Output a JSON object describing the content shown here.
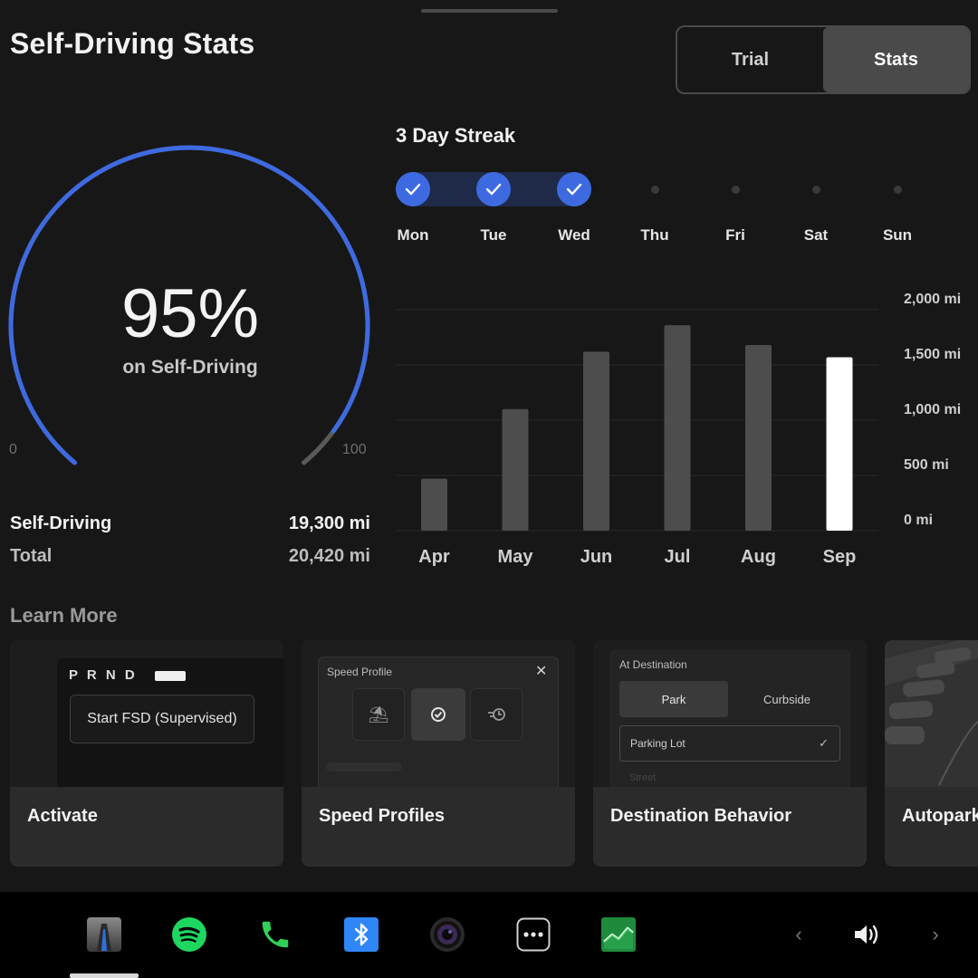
{
  "page": {
    "title": "Self-Driving Stats"
  },
  "tabs": [
    {
      "label": "Trial",
      "active": false
    },
    {
      "label": "Stats",
      "active": true
    }
  ],
  "gauge": {
    "percent_label": "95%",
    "percent": 95,
    "subtitle": "on Self-Driving",
    "min_label": "0",
    "max_label": "100",
    "accent": "#3e6ae1"
  },
  "stats": {
    "self_driving": {
      "label": "Self-Driving",
      "value": "19,300 mi"
    },
    "total": {
      "label": "Total",
      "value": "20,420 mi"
    }
  },
  "streak": {
    "title": "3 Day Streak",
    "days": [
      {
        "label": "Mon",
        "done": true
      },
      {
        "label": "Tue",
        "done": true
      },
      {
        "label": "Wed",
        "done": true
      },
      {
        "label": "Thu",
        "done": false
      },
      {
        "label": "Fri",
        "done": false
      },
      {
        "label": "Sat",
        "done": false
      },
      {
        "label": "Sun",
        "done": false
      }
    ]
  },
  "chart_data": {
    "type": "bar",
    "categories": [
      "Apr",
      "May",
      "Jun",
      "Jul",
      "Aug",
      "Sep"
    ],
    "values": [
      470,
      1100,
      1620,
      1860,
      1680,
      1570
    ],
    "highlight_index": 5,
    "ylim": [
      0,
      2000
    ],
    "yticks": [
      {
        "value": 0,
        "label": "0 mi"
      },
      {
        "value": 500,
        "label": "500 mi"
      },
      {
        "value": 1000,
        "label": "1,000 mi"
      },
      {
        "value": 1500,
        "label": "1,500 mi"
      },
      {
        "value": 2000,
        "label": "2,000 mi"
      }
    ],
    "grid": true,
    "colors": {
      "bar": "#4d4d4d",
      "highlight": "#ffffff"
    }
  },
  "learn_more": {
    "title": "Learn More",
    "cards": [
      {
        "label": "Activate",
        "gear_letters": "P R N D",
        "button": "Start FSD (Supervised)"
      },
      {
        "label": "Speed Profiles",
        "panel_title": "Speed Profile"
      },
      {
        "label": "Destination Behavior",
        "panel_title": "At Destination",
        "option_a": "Park",
        "option_b": "Curbside",
        "select": "Parking Lot",
        "faded": "Street"
      },
      {
        "label": "Autopark"
      }
    ]
  },
  "taskbar": {
    "icons": [
      "autopilot-icon",
      "spotify-icon",
      "phone-icon",
      "bluetooth-icon",
      "camera-icon",
      "more-icon",
      "stocks-icon"
    ],
    "colors": {
      "spotify": "#1ed760",
      "phone": "#2fd158",
      "bluetooth": "#2f86f6",
      "stocks": "#1f8a3c"
    }
  }
}
